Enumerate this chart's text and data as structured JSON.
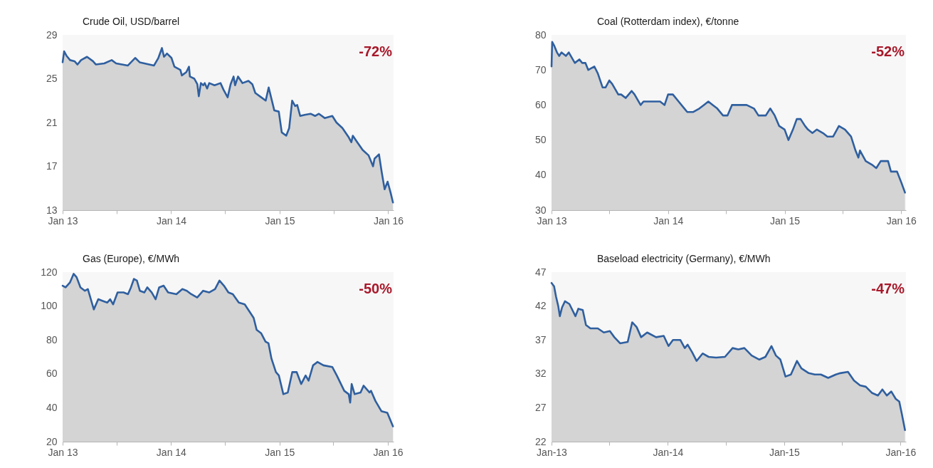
{
  "chart_data": [
    {
      "type": "area",
      "title": "Crude Oil, USD/barrel",
      "color": "#2f5f9f",
      "grid": false,
      "annotations": [
        "-72%"
      ],
      "xlim": [
        "2013-01-01",
        "2016-01-19"
      ],
      "ylim": [
        13,
        29
      ],
      "yticks": [
        13,
        17,
        21,
        25,
        29
      ],
      "xticks": [
        {
          "value": "2013-01-01",
          "label": "Jan 13"
        },
        {
          "value": "2013-07-01",
          "label": null
        },
        {
          "value": "2014-01-01",
          "label": "Jan 14"
        },
        {
          "value": "2014-07-01",
          "label": null
        },
        {
          "value": "2015-01-01",
          "label": "Jan 15"
        },
        {
          "value": "2015-07-01",
          "label": null
        },
        {
          "value": "2016-01-01",
          "label": "Jan 16"
        }
      ],
      "x": [
        "2013-01-01",
        "2013-01-06",
        "2013-01-14",
        "2013-01-26",
        "2013-02-10",
        "2013-02-20",
        "2013-03-04",
        "2013-03-24",
        "2013-04-13",
        "2013-04-23",
        "2013-05-21",
        "2013-06-15",
        "2013-06-30",
        "2013-08-08",
        "2013-09-02",
        "2013-09-17",
        "2013-11-04",
        "2013-11-19",
        "2013-12-01",
        "2013-12-08",
        "2013-12-18",
        "2014-01-02",
        "2014-01-12",
        "2014-02-01",
        "2014-02-06",
        "2014-02-21",
        "2014-03-02",
        "2014-03-05",
        "2014-03-20",
        "2014-03-30",
        "2014-04-04",
        "2014-04-11",
        "2014-04-19",
        "2014-04-24",
        "2014-05-02",
        "2014-05-09",
        "2014-05-27",
        "2014-06-16",
        "2014-06-26",
        "2014-07-10",
        "2014-07-20",
        "2014-07-30",
        "2014-08-04",
        "2014-08-14",
        "2014-08-29",
        "2014-09-18",
        "2014-10-01",
        "2014-10-11",
        "2014-10-31",
        "2014-11-15",
        "2014-11-25",
        "2014-12-04",
        "2014-12-14",
        "2014-12-29",
        "2015-01-08",
        "2015-01-23",
        "2015-02-02",
        "2015-02-12",
        "2015-02-22",
        "2015-03-01",
        "2015-03-11",
        "2015-03-26",
        "2015-04-15",
        "2015-04-30",
        "2015-05-13",
        "2015-06-02",
        "2015-06-27",
        "2015-07-11",
        "2015-07-31",
        "2015-08-20",
        "2015-08-30",
        "2015-09-04",
        "2015-09-19",
        "2015-10-07",
        "2015-10-27",
        "2015-11-11",
        "2015-11-16",
        "2015-12-01",
        "2015-12-10",
        "2015-12-20",
        "2015-12-30",
        "2016-01-09",
        "2016-01-17"
      ],
      "values": [
        26.5,
        27.5,
        27.1,
        26.7,
        26.6,
        26.3,
        26.7,
        27.0,
        26.6,
        26.3,
        26.4,
        26.7,
        26.4,
        26.2,
        26.9,
        26.5,
        26.2,
        26.9,
        27.8,
        27.0,
        27.3,
        26.9,
        26.1,
        25.8,
        25.3,
        25.6,
        26.1,
        25.2,
        25.0,
        24.5,
        23.4,
        24.6,
        24.4,
        24.6,
        24.1,
        24.6,
        24.4,
        24.6,
        24.0,
        23.3,
        24.5,
        25.2,
        24.4,
        25.2,
        24.6,
        24.8,
        24.5,
        23.7,
        23.3,
        23.0,
        24.2,
        23.2,
        22.1,
        22.0,
        20.1,
        19.8,
        20.5,
        23.0,
        22.5,
        22.6,
        21.6,
        21.7,
        21.8,
        21.6,
        21.8,
        21.4,
        21.6,
        21.0,
        20.5,
        19.7,
        19.2,
        19.8,
        19.2,
        18.5,
        18.0,
        17.0,
        17.7,
        18.1,
        16.5,
        14.9,
        15.6,
        14.6,
        13.7
      ]
    },
    {
      "type": "area",
      "title": "Coal (Rotterdam index), €/tonne",
      "color": "#2f5f9f",
      "grid": false,
      "annotations": [
        "-52%"
      ],
      "xlim": [
        "2013-01-01",
        "2016-01-16"
      ],
      "ylim": [
        30,
        80
      ],
      "yticks": [
        30,
        40,
        50,
        60,
        70,
        80
      ],
      "xticks": [
        {
          "value": "2013-01-01",
          "label": "Jan 13"
        },
        {
          "value": "2013-07-01",
          "label": null
        },
        {
          "value": "2014-01-01",
          "label": "Jan 14"
        },
        {
          "value": "2014-07-01",
          "label": null
        },
        {
          "value": "2015-01-01",
          "label": "Jan 15"
        },
        {
          "value": "2015-07-01",
          "label": null
        },
        {
          "value": "2016-01-01",
          "label": "Jan 16"
        }
      ],
      "x": [
        "2013-01-01",
        "2013-01-03",
        "2013-01-09",
        "2013-01-18",
        "2013-01-25",
        "2013-02-01",
        "2013-02-15",
        "2013-02-24",
        "2013-03-15",
        "2013-03-29",
        "2013-04-07",
        "2013-04-17",
        "2013-04-26",
        "2013-05-15",
        "2013-05-26",
        "2013-06-10",
        "2013-06-19",
        "2013-07-01",
        "2013-07-10",
        "2013-07-29",
        "2013-08-07",
        "2013-08-21",
        "2013-09-09",
        "2013-09-18",
        "2013-10-07",
        "2013-10-16",
        "2013-11-04",
        "2013-11-18",
        "2013-12-07",
        "2013-12-21",
        "2014-01-01",
        "2014-01-16",
        "2014-02-03",
        "2014-02-21",
        "2014-03-02",
        "2014-03-21",
        "2014-04-09",
        "2014-04-23",
        "2014-05-07",
        "2014-05-21",
        "2014-06-04",
        "2014-06-22",
        "2014-07-06",
        "2014-07-20",
        "2014-08-17",
        "2014-09-04",
        "2014-09-27",
        "2014-10-11",
        "2014-10-25",
        "2014-11-03",
        "2014-11-17",
        "2014-12-01",
        "2014-12-15",
        "2015-01-01",
        "2015-01-13",
        "2015-01-27",
        "2015-02-08",
        "2015-02-20",
        "2015-03-06",
        "2015-03-15",
        "2015-03-29",
        "2015-04-12",
        "2015-05-01",
        "2015-05-15",
        "2015-06-02",
        "2015-06-20",
        "2015-07-09",
        "2015-07-28",
        "2015-08-11",
        "2015-08-20",
        "2015-08-25",
        "2015-09-12",
        "2015-10-01",
        "2015-10-15",
        "2015-10-29",
        "2015-11-12",
        "2015-11-21",
        "2015-11-30",
        "2015-12-19",
        "2016-01-01",
        "2016-01-13"
      ],
      "values": [
        71,
        78,
        77,
        75,
        74,
        75,
        74,
        75,
        72,
        73,
        72,
        72,
        70,
        71,
        69,
        65,
        65,
        67,
        66,
        63,
        63,
        62,
        64,
        63,
        60,
        61,
        61,
        61,
        61,
        60,
        63,
        63,
        61,
        59,
        58,
        58,
        59,
        60,
        61,
        60,
        59,
        57,
        57,
        60,
        60,
        60,
        59,
        57,
        57,
        57,
        59,
        57,
        54,
        53,
        50,
        53,
        56,
        56,
        54,
        53,
        52,
        53,
        52,
        51,
        51,
        54,
        53,
        51,
        47,
        45,
        47,
        44,
        43,
        42,
        44,
        44,
        44,
        41,
        41,
        38,
        35
      ]
    },
    {
      "type": "area",
      "title": "Gas (Europe), €/MWh",
      "color": "#2f5f9f",
      "grid": false,
      "annotations": [
        "-50%"
      ],
      "xlim": [
        "2013-01-01",
        "2016-01-20"
      ],
      "ylim": [
        20,
        120
      ],
      "yticks": [
        20,
        40,
        60,
        80,
        100,
        120
      ],
      "xticks": [
        {
          "value": "2013-01-01",
          "label": "Jan 13"
        },
        {
          "value": "2013-07-01",
          "label": null
        },
        {
          "value": "2014-01-01",
          "label": "Jan 14"
        },
        {
          "value": "2014-07-01",
          "label": null
        },
        {
          "value": "2015-01-01",
          "label": "Jan 15"
        },
        {
          "value": "2015-07-01",
          "label": null
        },
        {
          "value": "2016-01-01",
          "label": "Jan 16"
        }
      ],
      "x": [
        "2013-01-01",
        "2013-01-11",
        "2013-01-26",
        "2013-02-07",
        "2013-02-17",
        "2013-03-02",
        "2013-03-17",
        "2013-03-27",
        "2013-04-06",
        "2013-04-16",
        "2013-05-01",
        "2013-05-16",
        "2013-05-31",
        "2013-06-10",
        "2013-06-20",
        "2013-07-05",
        "2013-07-25",
        "2013-08-09",
        "2013-08-19",
        "2013-08-29",
        "2013-09-08",
        "2013-09-18",
        "2013-10-03",
        "2013-10-13",
        "2013-10-28",
        "2013-11-10",
        "2013-11-22",
        "2013-12-07",
        "2013-12-22",
        "2014-01-19",
        "2014-02-08",
        "2014-02-23",
        "2014-03-10",
        "2014-03-30",
        "2014-04-19",
        "2014-05-09",
        "2014-05-29",
        "2014-06-13",
        "2014-06-28",
        "2014-07-13",
        "2014-07-28",
        "2014-08-17",
        "2014-09-06",
        "2014-09-21",
        "2014-10-06",
        "2014-10-16",
        "2014-10-31",
        "2014-11-15",
        "2014-11-25",
        "2014-12-05",
        "2014-12-20",
        "2014-12-30",
        "2015-01-14",
        "2015-01-29",
        "2015-02-13",
        "2015-02-28",
        "2015-03-15",
        "2015-03-30",
        "2015-04-09",
        "2015-04-24",
        "2015-05-09",
        "2015-05-29",
        "2015-06-28",
        "2015-07-13",
        "2015-08-07",
        "2015-08-22",
        "2015-08-27",
        "2015-09-01",
        "2015-09-11",
        "2015-10-01",
        "2015-10-11",
        "2015-10-31",
        "2015-11-05",
        "2015-11-20",
        "2015-12-10",
        "2015-12-30",
        "2016-01-18"
      ],
      "values": [
        112,
        111,
        114,
        119,
        117,
        111,
        109,
        110,
        104,
        98,
        104,
        103,
        102,
        104,
        101,
        108,
        108,
        107,
        111,
        116,
        115,
        109,
        108,
        111,
        108,
        104,
        111,
        112,
        108,
        107,
        110,
        109,
        107,
        105,
        109,
        108,
        110,
        115,
        112,
        108,
        107,
        102,
        101,
        97,
        93,
        86,
        84,
        79,
        78,
        69,
        61,
        59,
        48,
        49,
        61,
        61,
        54,
        59,
        56,
        65,
        67,
        65,
        64,
        59,
        50,
        48,
        43,
        54,
        48,
        49,
        53,
        49,
        50,
        44,
        38,
        37,
        29
      ]
    },
    {
      "type": "area",
      "title": "Baseload electricity (Germany), €/MWh",
      "color": "#2f5f9f",
      "grid": false,
      "annotations": [
        "-47%"
      ],
      "xlim": [
        "2013-01-01",
        "2016-01-18"
      ],
      "ylim": [
        22,
        47
      ],
      "yticks": [
        22,
        27,
        32,
        37,
        42,
        47
      ],
      "xticks": [
        {
          "value": "2013-01-01",
          "label": "Jan-13"
        },
        {
          "value": "2013-07-01",
          "label": null
        },
        {
          "value": "2014-01-01",
          "label": "Jan-14"
        },
        {
          "value": "2014-07-01",
          "label": null
        },
        {
          "value": "2015-01-01",
          "label": "Jan-15"
        },
        {
          "value": "2015-07-01",
          "label": null
        },
        {
          "value": "2016-01-01",
          "label": "Jan-16"
        }
      ],
      "x": [
        "2013-01-01",
        "2013-01-09",
        "2013-01-15",
        "2013-01-22",
        "2013-01-27",
        "2013-02-03",
        "2013-02-12",
        "2013-02-26",
        "2013-03-17",
        "2013-03-26",
        "2013-04-09",
        "2013-04-19",
        "2013-05-03",
        "2013-05-26",
        "2013-06-14",
        "2013-07-03",
        "2013-07-17",
        "2013-08-04",
        "2013-08-28",
        "2013-09-11",
        "2013-09-25",
        "2013-10-09",
        "2013-10-28",
        "2013-11-25",
        "2013-12-19",
        "2014-01-03",
        "2014-01-17",
        "2014-02-09",
        "2014-02-23",
        "2014-03-04",
        "2014-03-18",
        "2014-04-01",
        "2014-04-20",
        "2014-05-09",
        "2014-06-01",
        "2014-06-29",
        "2014-07-23",
        "2014-08-10",
        "2014-08-29",
        "2014-09-21",
        "2014-10-15",
        "2014-11-03",
        "2014-11-22",
        "2014-12-06",
        "2014-12-20",
        "2015-01-05",
        "2015-01-22",
        "2015-02-10",
        "2015-02-24",
        "2015-03-19",
        "2015-04-07",
        "2015-04-26",
        "2015-05-19",
        "2015-06-12",
        "2015-06-26",
        "2015-07-20",
        "2015-08-08",
        "2015-08-27",
        "2015-09-14",
        "2015-10-03",
        "2015-10-22",
        "2015-11-05",
        "2015-11-19",
        "2015-12-03",
        "2015-12-17",
        "2015-12-28",
        "2016-01-05",
        "2016-01-15"
      ],
      "values": [
        45.4,
        44.9,
        43.4,
        42.0,
        40.5,
        41.8,
        42.7,
        42.3,
        40.5,
        41.6,
        41.4,
        39.2,
        38.7,
        38.7,
        38.1,
        38.3,
        37.4,
        36.5,
        36.7,
        39.6,
        38.9,
        37.4,
        38.1,
        37.4,
        37.6,
        36.1,
        37.0,
        37.0,
        35.8,
        36.3,
        35.2,
        33.9,
        35.0,
        34.5,
        34.4,
        34.5,
        35.8,
        35.6,
        35.8,
        34.7,
        34.1,
        34.5,
        36.1,
        34.7,
        34.1,
        31.6,
        31.9,
        33.9,
        32.8,
        32.1,
        31.9,
        31.9,
        31.4,
        31.9,
        32.1,
        32.3,
        31.0,
        30.3,
        30.1,
        29.2,
        28.8,
        29.7,
        28.8,
        29.4,
        28.3,
        27.9,
        26.1,
        23.7
      ]
    }
  ]
}
